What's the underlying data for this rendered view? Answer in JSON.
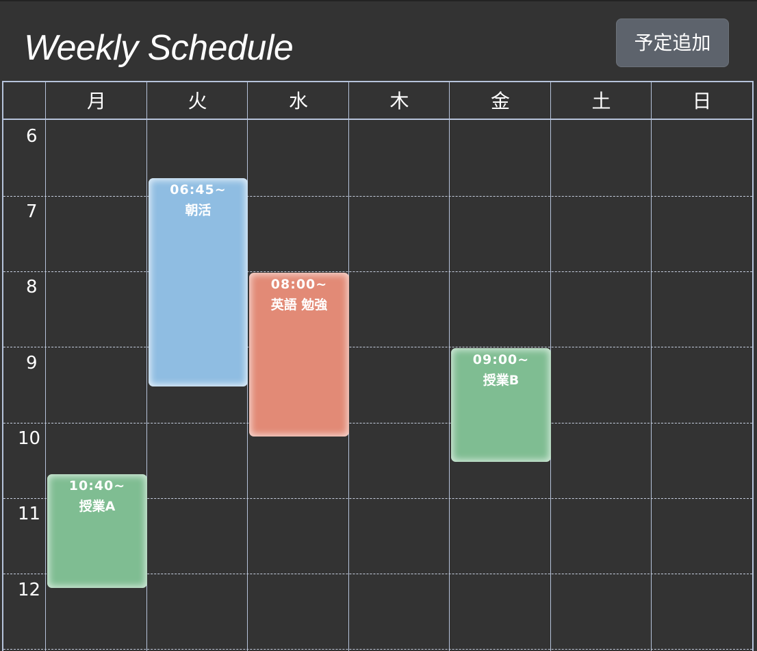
{
  "app": {
    "title": "Weekly Schedule",
    "add_button_label": "予定追加"
  },
  "days": [
    "月",
    "火",
    "水",
    "木",
    "金",
    "土",
    "日"
  ],
  "hours": [
    "6",
    "7",
    "8",
    "9",
    "10",
    "11",
    "12"
  ],
  "events": [
    {
      "day": "火",
      "time": "06:45~",
      "title": "朝活",
      "color": "#8fbde2"
    },
    {
      "day": "水",
      "time": "08:00~",
      "title": "英語 勉強",
      "color": "#e28a76"
    },
    {
      "day": "金",
      "time": "09:00~",
      "title": "授業B",
      "color": "#7fbd92"
    },
    {
      "day": "月",
      "time": "10:40~",
      "title": "授業A",
      "color": "#7fbd92"
    }
  ],
  "colors": {
    "background": "#333333",
    "grid_line": "#b7c4dc",
    "button": "#5d636c"
  }
}
